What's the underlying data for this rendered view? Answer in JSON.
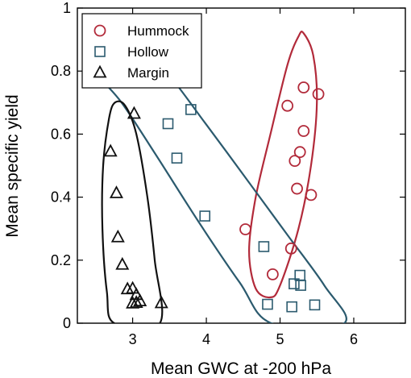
{
  "chart_data": {
    "type": "scatter",
    "xlabel": "Mean GWC at -200 hPa",
    "ylabel": "Mean specific yield",
    "xlim": [
      2.25,
      6.7
    ],
    "ylim": [
      0,
      1
    ],
    "xticks": [
      {
        "value": 3,
        "label": "3"
      },
      {
        "value": 4,
        "label": "4"
      },
      {
        "value": 5,
        "label": "5"
      },
      {
        "value": 6,
        "label": "6"
      }
    ],
    "yticks": [
      {
        "value": 0,
        "label": "0"
      },
      {
        "value": 0.2,
        "label": "0.2"
      },
      {
        "value": 0.4,
        "label": "0.4"
      },
      {
        "value": 0.6,
        "label": "0.6"
      },
      {
        "value": 0.8,
        "label": "0.8"
      },
      {
        "value": 1,
        "label": "1"
      }
    ],
    "grid": false,
    "legend": "top-left",
    "series": [
      {
        "name": "Hummock",
        "marker": "circle",
        "color": "#b22a3a",
        "points": [
          [
            5.32,
            0.748
          ],
          [
            5.52,
            0.727
          ],
          [
            5.1,
            0.69
          ],
          [
            5.32,
            0.61
          ],
          [
            5.27,
            0.543
          ],
          [
            5.2,
            0.515
          ],
          [
            5.23,
            0.427
          ],
          [
            5.42,
            0.407
          ],
          [
            4.53,
            0.298
          ],
          [
            5.15,
            0.237
          ],
          [
            4.9,
            0.155
          ]
        ],
        "ellipse": [
          [
            5.32,
            0.92
          ],
          [
            5.45,
            0.85
          ],
          [
            5.5,
            0.7
          ],
          [
            5.42,
            0.5
          ],
          [
            5.25,
            0.3
          ],
          [
            5.0,
            0.12
          ],
          [
            4.87,
            0.082
          ],
          [
            4.67,
            0.11
          ],
          [
            4.58,
            0.23
          ],
          [
            4.67,
            0.4
          ],
          [
            4.87,
            0.6
          ],
          [
            5.1,
            0.82
          ],
          [
            5.25,
            0.91
          ],
          [
            5.32,
            0.92
          ]
        ]
      },
      {
        "name": "Hollow",
        "marker": "square",
        "color": "#2b5a6e",
        "points": [
          [
            3.48,
            0.633
          ],
          [
            3.79,
            0.678
          ],
          [
            3.6,
            0.524
          ],
          [
            3.98,
            0.34
          ],
          [
            4.78,
            0.243
          ],
          [
            5.27,
            0.152
          ],
          [
            5.19,
            0.125
          ],
          [
            5.28,
            0.12
          ],
          [
            4.83,
            0.06
          ],
          [
            5.16,
            0.052
          ],
          [
            5.47,
            0.058
          ]
        ],
        "ellipse": [
          [
            2.5,
            0.8
          ],
          [
            2.4,
            0.9
          ],
          [
            2.55,
            0.93
          ],
          [
            3.0,
            0.9
          ],
          [
            3.45,
            0.8
          ],
          [
            4.0,
            0.63
          ],
          [
            4.6,
            0.44
          ],
          [
            5.1,
            0.28
          ],
          [
            5.6,
            0.12
          ],
          [
            5.87,
            0.0
          ],
          [
            4.88,
            0.0
          ],
          [
            4.45,
            0.13
          ],
          [
            3.9,
            0.32
          ],
          [
            3.3,
            0.54
          ],
          [
            2.85,
            0.7
          ],
          [
            2.5,
            0.8
          ]
        ]
      },
      {
        "name": "Margin",
        "marker": "triangle",
        "color": "#111111",
        "points": [
          [
            2.7,
            0.545
          ],
          [
            2.78,
            0.413
          ],
          [
            2.8,
            0.273
          ],
          [
            2.86,
            0.186
          ],
          [
            2.93,
            0.108
          ],
          [
            3.0,
            0.11
          ],
          [
            3.05,
            0.09
          ],
          [
            3.1,
            0.07
          ],
          [
            3.0,
            0.063
          ],
          [
            3.05,
            0.065
          ],
          [
            3.02,
            0.665
          ],
          [
            3.39,
            0.064
          ]
        ],
        "ellipse": [
          [
            2.76,
            0.7
          ],
          [
            2.68,
            0.65
          ],
          [
            2.6,
            0.5
          ],
          [
            2.59,
            0.3
          ],
          [
            2.65,
            0.1
          ],
          [
            2.75,
            0.0
          ],
          [
            3.37,
            0.0
          ],
          [
            3.3,
            0.2
          ],
          [
            3.2,
            0.4
          ],
          [
            3.05,
            0.6
          ],
          [
            2.9,
            0.69
          ],
          [
            2.76,
            0.7
          ]
        ]
      }
    ]
  }
}
